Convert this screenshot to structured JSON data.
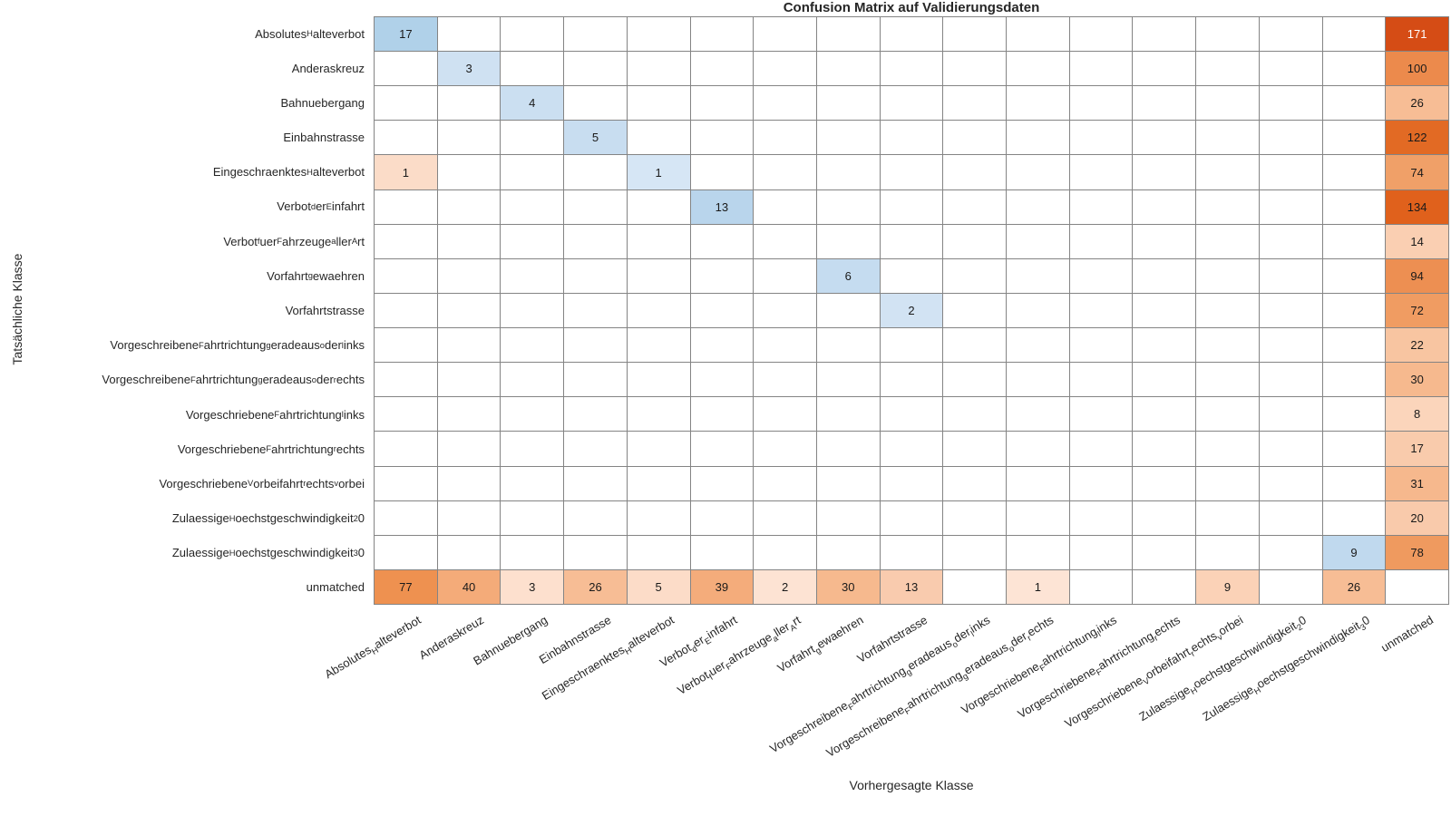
{
  "chart_data": {
    "type": "heatmap",
    "title": "Confusion Matrix auf Validierungsdaten",
    "xlabel": "Vorhergesagte Klasse",
    "ylabel": "Tatsächliche Klasse",
    "n": 17,
    "grid_line_color": "#848484",
    "empty_cell_color": "#ffffff",
    "value_text_color": "#1a1a1a",
    "value_text_color_on_dark": "#ffffff",
    "diagonal_colormap": "blues",
    "offdiagonal_colormap": "oranges",
    "classes": [
      {
        "plain": "Absolutes_Halteverbot",
        "segments": [
          [
            "n",
            "Absolutes"
          ],
          [
            "s",
            "H"
          ],
          [
            "n",
            "alteverbot"
          ]
        ]
      },
      {
        "plain": "Anderaskreuz",
        "segments": [
          [
            "n",
            "Anderaskreuz"
          ]
        ]
      },
      {
        "plain": "Bahnuebergang",
        "segments": [
          [
            "n",
            "Bahnuebergang"
          ]
        ]
      },
      {
        "plain": "Einbahnstrasse",
        "segments": [
          [
            "n",
            "Einbahnstrasse"
          ]
        ]
      },
      {
        "plain": "Eingeschraenktes_Halteverbot",
        "segments": [
          [
            "n",
            "Eingeschraenktes"
          ],
          [
            "s",
            "H"
          ],
          [
            "n",
            "alteverbot"
          ]
        ]
      },
      {
        "plain": "Verbot_der_Einfahrt",
        "segments": [
          [
            "n",
            "Verbot"
          ],
          [
            "s",
            "d"
          ],
          [
            "n",
            "er"
          ],
          [
            "s",
            "E"
          ],
          [
            "n",
            "infahrt"
          ]
        ]
      },
      {
        "plain": "Verbot_fuer_Fahrzeuge_aller_Art",
        "segments": [
          [
            "n",
            "Verbot"
          ],
          [
            "s",
            "f"
          ],
          [
            "n",
            "uer"
          ],
          [
            "s",
            "F"
          ],
          [
            "n",
            "ahrzeuge"
          ],
          [
            "s",
            "a"
          ],
          [
            "n",
            "ller"
          ],
          [
            "s",
            "A"
          ],
          [
            "n",
            "rt"
          ]
        ]
      },
      {
        "plain": "Vorfahrt_gewaehren",
        "segments": [
          [
            "n",
            "Vorfahrt"
          ],
          [
            "s",
            "g"
          ],
          [
            "n",
            "ewaehren"
          ]
        ]
      },
      {
        "plain": "Vorfahrtstrasse",
        "segments": [
          [
            "n",
            "Vorfahrtstrasse"
          ]
        ]
      },
      {
        "plain": "Vorgeschreibene_Fahrtrichtung_geradeaus_oder_links",
        "segments": [
          [
            "n",
            "Vorgeschreibene"
          ],
          [
            "s",
            "F"
          ],
          [
            "n",
            "ahrtrichtung"
          ],
          [
            "s",
            "g"
          ],
          [
            "n",
            "eradeaus"
          ],
          [
            "s",
            "o"
          ],
          [
            "n",
            "der"
          ],
          [
            "s",
            "l"
          ],
          [
            "n",
            "inks"
          ]
        ]
      },
      {
        "plain": "Vorgeschreibene_Fahrtrichtung_geradeaus_oder_rechts",
        "segments": [
          [
            "n",
            "Vorgeschreibene"
          ],
          [
            "s",
            "F"
          ],
          [
            "n",
            "ahrtrichtung"
          ],
          [
            "s",
            "g"
          ],
          [
            "n",
            "eradeaus"
          ],
          [
            "s",
            "o"
          ],
          [
            "n",
            "der"
          ],
          [
            "s",
            "r"
          ],
          [
            "n",
            "echts"
          ]
        ]
      },
      {
        "plain": "Vorgeschriebene_Fahrtrichtung_links",
        "segments": [
          [
            "n",
            "Vorgeschriebene"
          ],
          [
            "s",
            "F"
          ],
          [
            "n",
            "ahrtrichtung"
          ],
          [
            "s",
            "l"
          ],
          [
            "n",
            "inks"
          ]
        ]
      },
      {
        "plain": "Vorgeschriebene_Fahrtrichtung_rechts",
        "segments": [
          [
            "n",
            "Vorgeschriebene"
          ],
          [
            "s",
            "F"
          ],
          [
            "n",
            "ahrtrichtung"
          ],
          [
            "s",
            "r"
          ],
          [
            "n",
            "echts"
          ]
        ]
      },
      {
        "plain": "Vorgeschriebene_Vorbeifahrt_rechts_vorbei",
        "segments": [
          [
            "n",
            "Vorgeschriebene"
          ],
          [
            "s",
            "V"
          ],
          [
            "n",
            "orbeifahrt"
          ],
          [
            "s",
            "r"
          ],
          [
            "n",
            "echts"
          ],
          [
            "s",
            "v"
          ],
          [
            "n",
            "orbei"
          ]
        ]
      },
      {
        "plain": "Zulaessige_Hoechstgeschwindigkeit_20",
        "segments": [
          [
            "n",
            "Zulaessige"
          ],
          [
            "s",
            "H"
          ],
          [
            "n",
            "oechstgeschwindigkeit"
          ],
          [
            "s",
            "2"
          ],
          [
            "n",
            "0"
          ]
        ]
      },
      {
        "plain": "Zulaessige_Hoechstgeschwindigkeit_30",
        "segments": [
          [
            "n",
            "Zulaessige"
          ],
          [
            "s",
            "H"
          ],
          [
            "n",
            "oechstgeschwindigkeit"
          ],
          [
            "s",
            "3"
          ],
          [
            "n",
            "0"
          ]
        ]
      },
      {
        "plain": "unmatched",
        "segments": [
          [
            "n",
            "unmatched"
          ]
        ]
      }
    ],
    "cells": [
      {
        "r": 0,
        "c": 0,
        "v": 17,
        "bg": "#b0d1e9"
      },
      {
        "r": 1,
        "c": 1,
        "v": 3,
        "bg": "#cfe1f2"
      },
      {
        "r": 2,
        "c": 2,
        "v": 4,
        "bg": "#cbdff1"
      },
      {
        "r": 3,
        "c": 3,
        "v": 5,
        "bg": "#c8ddf0"
      },
      {
        "r": 4,
        "c": 0,
        "v": 1,
        "bg": "#fbdcc8"
      },
      {
        "r": 4,
        "c": 4,
        "v": 1,
        "bg": "#d6e6f5"
      },
      {
        "r": 5,
        "c": 5,
        "v": 13,
        "bg": "#b9d5ec"
      },
      {
        "r": 7,
        "c": 7,
        "v": 6,
        "bg": "#c5dcf0"
      },
      {
        "r": 8,
        "c": 8,
        "v": 2,
        "bg": "#d2e3f3"
      },
      {
        "r": 15,
        "c": 15,
        "v": 9,
        "bg": "#c0d9ee"
      },
      {
        "r": 0,
        "c": 16,
        "v": 171,
        "bg": "#d54c15",
        "fg": "#ffffff"
      },
      {
        "r": 1,
        "c": 16,
        "v": 100,
        "bg": "#ec8a4c"
      },
      {
        "r": 2,
        "c": 16,
        "v": 26,
        "bg": "#f7bd95"
      },
      {
        "r": 3,
        "c": 16,
        "v": 122,
        "bg": "#e26a24"
      },
      {
        "r": 4,
        "c": 16,
        "v": 74,
        "bg": "#f0a068"
      },
      {
        "r": 5,
        "c": 16,
        "v": 134,
        "bg": "#e0611c"
      },
      {
        "r": 6,
        "c": 16,
        "v": 14,
        "bg": "#facfb2"
      },
      {
        "r": 7,
        "c": 16,
        "v": 94,
        "bg": "#ed8f52"
      },
      {
        "r": 8,
        "c": 16,
        "v": 72,
        "bg": "#f09c62"
      },
      {
        "r": 9,
        "c": 16,
        "v": 22,
        "bg": "#f8c5a1"
      },
      {
        "r": 10,
        "c": 16,
        "v": 30,
        "bg": "#f6b98e"
      },
      {
        "r": 11,
        "c": 16,
        "v": 8,
        "bg": "#fbd5bb"
      },
      {
        "r": 12,
        "c": 16,
        "v": 17,
        "bg": "#f9cbac"
      },
      {
        "r": 13,
        "c": 16,
        "v": 31,
        "bg": "#f6b88d"
      },
      {
        "r": 14,
        "c": 16,
        "v": 20,
        "bg": "#f9caab"
      },
      {
        "r": 15,
        "c": 16,
        "v": 78,
        "bg": "#ef9a5f"
      },
      {
        "r": 16,
        "c": 0,
        "v": 77,
        "bg": "#ee9150"
      },
      {
        "r": 16,
        "c": 1,
        "v": 40,
        "bg": "#f4ab79"
      },
      {
        "r": 16,
        "c": 2,
        "v": 3,
        "bg": "#fde0ce"
      },
      {
        "r": 16,
        "c": 3,
        "v": 26,
        "bg": "#f7bd95"
      },
      {
        "r": 16,
        "c": 4,
        "v": 5,
        "bg": "#fcdcc8"
      },
      {
        "r": 16,
        "c": 5,
        "v": 39,
        "bg": "#f4ac7b"
      },
      {
        "r": 16,
        "c": 6,
        "v": 2,
        "bg": "#fde3d3"
      },
      {
        "r": 16,
        "c": 7,
        "v": 30,
        "bg": "#f6b98e"
      },
      {
        "r": 16,
        "c": 8,
        "v": 13,
        "bg": "#f9cbae"
      },
      {
        "r": 16,
        "c": 10,
        "v": 1,
        "bg": "#fde4d5"
      },
      {
        "r": 16,
        "c": 13,
        "v": 9,
        "bg": "#fbd2b7"
      },
      {
        "r": 16,
        "c": 15,
        "v": 26,
        "bg": "#f7bd95"
      }
    ]
  }
}
